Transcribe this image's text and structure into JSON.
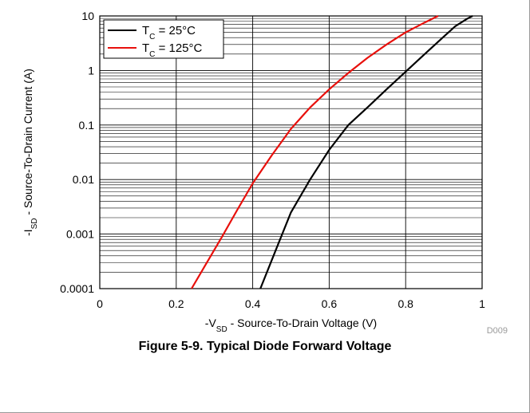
{
  "figure": {
    "caption": "Figure 5-9. Typical Diode Forward Voltage",
    "figure_id": "D009"
  },
  "chart_data": {
    "type": "line",
    "title": "",
    "xlabel": "-V_SD - Source-To-Drain Voltage (V)",
    "xlabel_parts": {
      "prefix": "-V",
      "sub": "SD",
      "suffix": " - Source-To-Drain Voltage (V)"
    },
    "ylabel": "-I_SD - Source-To-Drain Current (A)",
    "ylabel_parts": {
      "prefix": "-I",
      "sub": "SD",
      "suffix": " - Source-To-Drain Current (A)"
    },
    "xlim": [
      0,
      1
    ],
    "ylim": [
      0.0001,
      10
    ],
    "yscale": "log",
    "x_ticks": [
      0,
      0.2,
      0.4,
      0.6,
      0.8,
      1
    ],
    "x_tick_labels": [
      "0",
      "0.2",
      "0.4",
      "0.6",
      "0.8",
      "1"
    ],
    "y_ticks": [
      0.0001,
      0.001,
      0.01,
      0.1,
      1,
      10
    ],
    "y_tick_labels": [
      "0.0001",
      "0.001",
      "0.01",
      "0.1",
      "1",
      "10"
    ],
    "grid": true,
    "legend_position": "top-left",
    "series": [
      {
        "name": "T_C = 25°C",
        "label_parts": {
          "prefix": "T",
          "sub": "C",
          "suffix": " = 25°C"
        },
        "color": "#000000",
        "x": [
          0.42,
          0.46,
          0.5,
          0.55,
          0.6,
          0.65,
          0.7,
          0.75,
          0.8,
          0.85,
          0.9,
          0.93,
          0.96,
          0.975
        ],
        "y": [
          0.0001,
          0.0005,
          0.0025,
          0.01,
          0.035,
          0.1,
          0.21,
          0.45,
          0.95,
          2.0,
          4.2,
          6.5,
          8.8,
          10
        ]
      },
      {
        "name": "T_C = 125°C",
        "label_parts": {
          "prefix": "T",
          "sub": "C",
          "suffix": " = 125°C"
        },
        "color": "#e8100c",
        "x": [
          0.24,
          0.28,
          0.32,
          0.36,
          0.4,
          0.45,
          0.5,
          0.55,
          0.6,
          0.65,
          0.7,
          0.75,
          0.8,
          0.85,
          0.885
        ],
        "y": [
          0.0001,
          0.0003,
          0.0009,
          0.0028,
          0.0085,
          0.028,
          0.085,
          0.21,
          0.45,
          0.9,
          1.7,
          3.0,
          5.0,
          7.6,
          10
        ]
      }
    ]
  }
}
